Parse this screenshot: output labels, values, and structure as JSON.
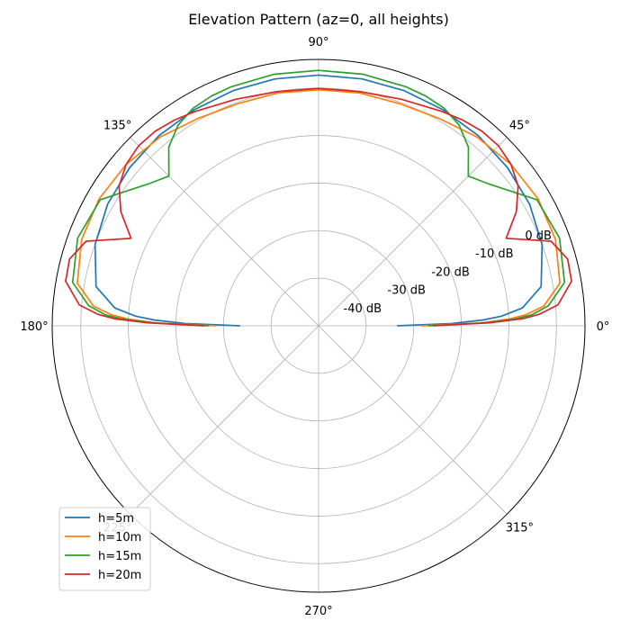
{
  "chart_data": {
    "type": "line",
    "subtype": "polar",
    "title": "Elevation Pattern (az=0, all heights)",
    "theta_unit": "degrees",
    "r_unit": "dB",
    "angle_ticks": [
      "0°",
      "45°",
      "90°",
      "135°",
      "180°",
      "225°",
      "270°",
      "315°"
    ],
    "angle_tick_values": [
      0,
      45,
      90,
      135,
      180,
      225,
      270,
      315
    ],
    "r_ticks": [
      "-40 dB",
      "-30 dB",
      "-20 dB",
      "-10 dB",
      "0 dB"
    ],
    "r_tick_values": [
      -40,
      -30,
      -20,
      -10,
      0
    ],
    "rlim": [
      -50,
      6
    ],
    "grid": true,
    "legend_position": "lower-left",
    "series": [
      {
        "name": "h=5m",
        "color": "#1f77b4",
        "theta": [
          0,
          1,
          2,
          3,
          5,
          10,
          20,
          30,
          40,
          50,
          60,
          70,
          80,
          90,
          100,
          110,
          120,
          130,
          140,
          150,
          160,
          170,
          175,
          177,
          178,
          179,
          180
        ],
        "r": [
          -33.5,
          -22,
          -15.5,
          -11.5,
          -7,
          -2.5,
          0,
          1.2,
          1.8,
          2.2,
          2.4,
          2.6,
          2.7,
          2.7,
          2.7,
          2.6,
          2.4,
          2.2,
          1.8,
          1.2,
          0,
          -2.5,
          -7,
          -11.5,
          -15.5,
          -22,
          -33.5
        ]
      },
      {
        "name": "h=10m",
        "color": "#ff7f0e",
        "theta": [
          0,
          1,
          2,
          3,
          5,
          10,
          20,
          30,
          40,
          50,
          60,
          70,
          80,
          90,
          100,
          110,
          120,
          130,
          140,
          150,
          160,
          170,
          175,
          177,
          178,
          179,
          180
        ],
        "r": [
          -28.5,
          -16,
          -10,
          -6.5,
          -2.5,
          1.5,
          3.0,
          3.3,
          2.8,
          1.8,
          0.4,
          -0.3,
          -0.3,
          -0.4,
          -0.3,
          -0.3,
          0.4,
          1.8,
          2.8,
          3.3,
          3.0,
          1.5,
          -2.5,
          -6.5,
          -10,
          -16,
          -28.5
        ]
      },
      {
        "name": "h=15m",
        "color": "#2ca02c",
        "theta": [
          0,
          1,
          2,
          3,
          5,
          10,
          20,
          30,
          40,
          45,
          50,
          55,
          60,
          65,
          70,
          80,
          90,
          100,
          110,
          115,
          120,
          125,
          130,
          135,
          140,
          150,
          160,
          170,
          175,
          177,
          178,
          179,
          180
        ],
        "r": [
          -27,
          -15,
          -8.5,
          -5,
          -1.5,
          2.5,
          3.9,
          3.0,
          -3.5,
          -5.5,
          -1.0,
          1.5,
          2.8,
          3.3,
          3.5,
          3.7,
          3.7,
          3.7,
          3.5,
          3.3,
          2.8,
          1.5,
          -1.0,
          -5.5,
          -3.5,
          3.0,
          3.9,
          2.5,
          -1.5,
          -5,
          -8.5,
          -15,
          -27
        ]
      },
      {
        "name": "h=20m",
        "color": "#d62728",
        "theta": [
          0,
          1,
          2,
          3,
          5,
          10,
          15,
          20,
          25,
          30,
          35,
          40,
          45,
          50,
          55,
          60,
          70,
          80,
          90,
          100,
          110,
          120,
          125,
          130,
          135,
          140,
          145,
          150,
          155,
          160,
          165,
          170,
          175,
          177,
          178,
          179,
          180
        ],
        "r": [
          -26,
          -14,
          -7,
          -3.5,
          0.5,
          4.0,
          4.2,
          2.0,
          -6.5,
          -2.0,
          1.2,
          2.8,
          3.5,
          3.4,
          2.8,
          2.0,
          0.7,
          0.0,
          -0.1,
          0.0,
          0.7,
          2.0,
          2.8,
          3.4,
          3.5,
          2.8,
          1.2,
          -2.0,
          -6.5,
          2.0,
          4.2,
          4.0,
          0.5,
          -3.5,
          -7,
          -14,
          -26
        ]
      }
    ]
  }
}
